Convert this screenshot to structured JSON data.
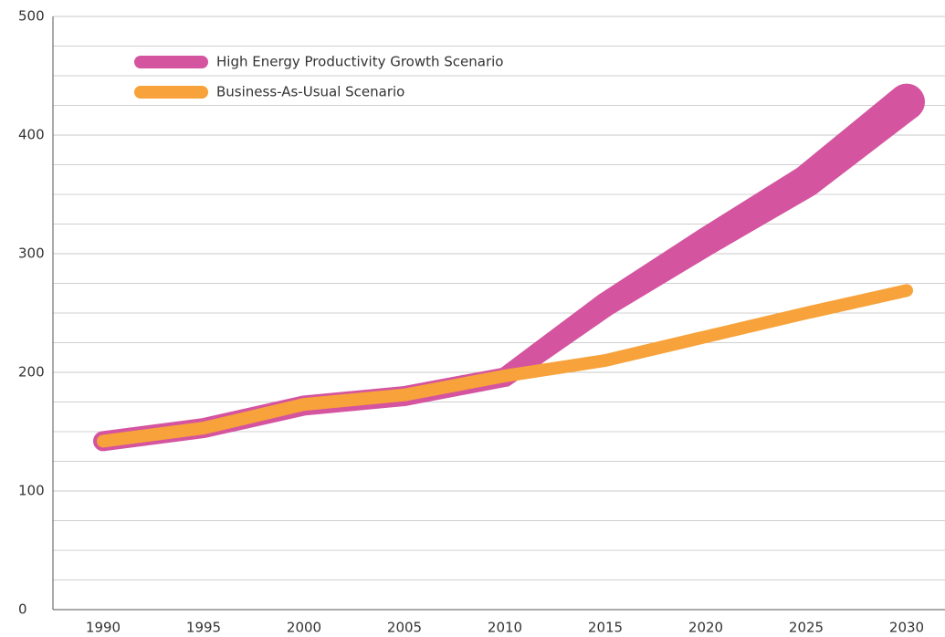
{
  "chart_data": {
    "type": "line",
    "categories": [
      "1990",
      "1995",
      "2000",
      "2005",
      "2010",
      "2015",
      "2020",
      "2025",
      "2030"
    ],
    "series": [
      {
        "name": "High Energy Productivity Growth Scenario",
        "color": "#d4549f",
        "values": [
          142,
          153,
          172,
          180,
          196,
          257,
          310,
          361,
          428
        ]
      },
      {
        "name": "Business-As-Usual Scenario",
        "color": "#f7a23a",
        "values": [
          142,
          153,
          173,
          181,
          197,
          210,
          230,
          250,
          269
        ]
      }
    ],
    "ylim": [
      0,
      500
    ],
    "yticks": [
      0,
      100,
      200,
      300,
      400,
      500
    ],
    "minor_yticks": [
      25,
      50,
      75,
      125,
      150,
      175,
      225,
      250,
      275,
      325,
      350,
      375,
      425,
      450,
      475
    ],
    "grid": true,
    "legend": "upper left"
  }
}
